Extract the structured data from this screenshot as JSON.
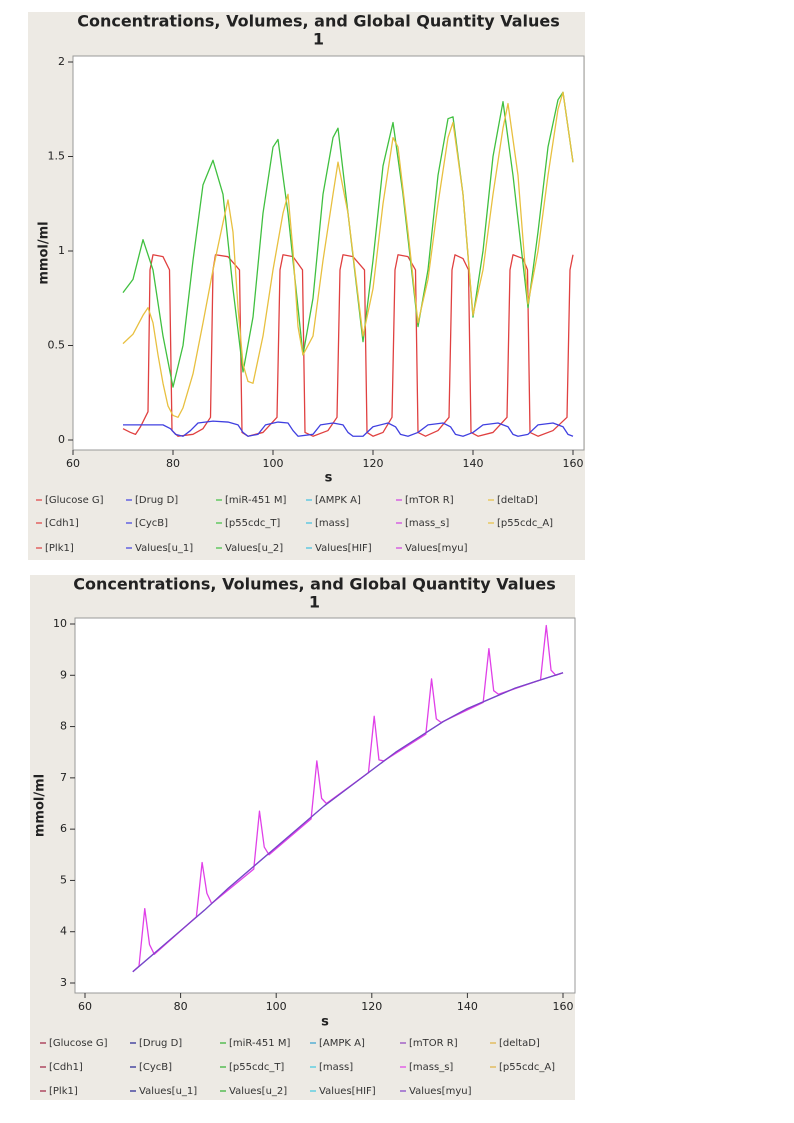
{
  "chart_data": [
    {
      "type": "line",
      "title": "Concentrations, Volumes, and Global Quantity Values",
      "subtitle": "1",
      "x_label": "s",
      "y_label": "mmol/ml",
      "xlim": [
        60,
        160
      ],
      "xticks": [
        60,
        80,
        100,
        120,
        140,
        160
      ],
      "ylim": [
        0,
        2
      ],
      "yticks": [
        0,
        0.5,
        1,
        1.5,
        2
      ],
      "series": [
        {
          "name": "[Glucose G]",
          "color": "#e04040",
          "x": [],
          "values": []
        },
        {
          "name": "[Drug D]",
          "color": "#4040e0",
          "x": [],
          "values": []
        },
        {
          "name": "[miR-451 M]",
          "color": "#40c040",
          "x": [],
          "values": []
        },
        {
          "name": "[AMPK A]",
          "color": "#40c0e0",
          "x": [],
          "values": []
        },
        {
          "name": "[mTOR R]",
          "color": "#d040e0",
          "x": [],
          "values": []
        },
        {
          "name": "[deltaD]",
          "color": "#e8c040",
          "x": [],
          "values": []
        },
        {
          "name": "[Cdh1]",
          "color": "#e04040",
          "x": [
            70,
            71.5,
            72.5,
            73.5,
            75,
            75.4,
            76,
            78,
            79.3,
            79.8,
            81,
            84,
            86,
            87.5,
            88,
            88.5,
            91,
            93.3,
            93.8,
            95,
            98,
            100.8,
            101.4,
            102,
            104,
            105.9,
            106.4,
            108,
            111,
            112.8,
            113.4,
            114,
            116,
            118.3,
            118.8,
            120,
            122,
            123.8,
            124.4,
            125,
            127,
            128.5,
            129,
            130.5,
            133,
            135.2,
            135.8,
            136.4,
            138,
            139.1,
            139.6,
            141,
            144,
            146.8,
            147.4,
            148,
            150,
            150.9,
            151.4,
            153,
            156,
            158.8,
            159.4,
            160
          ],
          "values": [
            0.06,
            0.04,
            0.03,
            0.07,
            0.15,
            0.9,
            0.98,
            0.97,
            0.9,
            0.05,
            0.02,
            0.03,
            0.06,
            0.12,
            0.9,
            0.98,
            0.97,
            0.9,
            0.04,
            0.02,
            0.04,
            0.12,
            0.9,
            0.98,
            0.97,
            0.9,
            0.04,
            0.02,
            0.05,
            0.12,
            0.9,
            0.98,
            0.97,
            0.9,
            0.04,
            0.02,
            0.04,
            0.12,
            0.9,
            0.98,
            0.97,
            0.9,
            0.04,
            0.02,
            0.05,
            0.12,
            0.9,
            0.98,
            0.96,
            0.9,
            0.04,
            0.02,
            0.04,
            0.12,
            0.9,
            0.98,
            0.96,
            0.9,
            0.04,
            0.02,
            0.05,
            0.12,
            0.9,
            0.98
          ]
        },
        {
          "name": "[CycB]",
          "color": "#4040e0",
          "x": [
            70,
            74,
            78,
            79.5,
            80.5,
            82,
            83.5,
            85,
            88,
            91,
            93,
            94,
            95,
            97,
            98.5,
            101,
            103,
            104,
            105,
            108,
            109.5,
            112,
            114,
            115,
            116,
            118,
            120,
            123,
            124.5,
            125.5,
            127,
            129,
            131,
            134,
            135.5,
            136.5,
            138,
            140,
            142,
            145,
            147,
            148,
            149,
            151,
            153,
            156,
            158,
            159,
            160
          ],
          "values": [
            0.08,
            0.08,
            0.08,
            0.06,
            0.03,
            0.02,
            0.05,
            0.09,
            0.1,
            0.095,
            0.08,
            0.04,
            0.02,
            0.03,
            0.08,
            0.095,
            0.09,
            0.05,
            0.02,
            0.03,
            0.08,
            0.09,
            0.08,
            0.04,
            0.02,
            0.02,
            0.07,
            0.09,
            0.07,
            0.03,
            0.02,
            0.04,
            0.08,
            0.09,
            0.07,
            0.03,
            0.02,
            0.04,
            0.08,
            0.09,
            0.07,
            0.03,
            0.02,
            0.03,
            0.08,
            0.09,
            0.07,
            0.03,
            0.02
          ]
        },
        {
          "name": "[p55cdc_T]",
          "color": "#40c040",
          "x": [
            70,
            72,
            74,
            76,
            78,
            80,
            82,
            84,
            86,
            88,
            90,
            92,
            94,
            96,
            98,
            100,
            101,
            103,
            106,
            108,
            110,
            112,
            113,
            115,
            118,
            120,
            122,
            124,
            126,
            129,
            131,
            133,
            135,
            136,
            138,
            140,
            142,
            144,
            146,
            148,
            151,
            153,
            155,
            157,
            158,
            160
          ],
          "values": [
            0.78,
            0.85,
            1.06,
            0.9,
            0.55,
            0.28,
            0.5,
            0.95,
            1.35,
            1.48,
            1.3,
            0.8,
            0.36,
            0.65,
            1.2,
            1.55,
            1.59,
            1.2,
            0.45,
            0.75,
            1.3,
            1.6,
            1.65,
            1.2,
            0.52,
            0.95,
            1.45,
            1.68,
            1.3,
            0.6,
            0.9,
            1.4,
            1.7,
            1.71,
            1.3,
            0.65,
            1.0,
            1.5,
            1.79,
            1.4,
            0.7,
            1.1,
            1.55,
            1.8,
            1.84,
            1.47
          ]
        },
        {
          "name": "[mass]",
          "color": "#40c0e0",
          "x": [],
          "values": []
        },
        {
          "name": "[mass_s]",
          "color": "#d040e0",
          "x": [],
          "values": []
        },
        {
          "name": "[p55cdc_A]",
          "color": "#e8c040",
          "x": [
            70,
            72,
            74,
            75,
            76,
            77,
            78,
            79,
            80,
            81,
            82,
            84,
            86,
            88,
            90,
            91,
            92,
            93,
            94,
            95,
            96,
            98,
            100,
            102,
            103,
            104,
            105,
            106,
            108,
            110,
            112,
            113,
            115,
            118,
            120,
            122,
            124,
            125,
            127,
            129,
            131,
            133,
            135,
            136,
            138,
            140,
            142,
            144,
            146,
            147,
            149,
            151,
            153,
            155,
            157,
            158,
            160
          ],
          "values": [
            0.51,
            0.56,
            0.66,
            0.7,
            0.62,
            0.45,
            0.3,
            0.18,
            0.13,
            0.12,
            0.17,
            0.35,
            0.62,
            0.9,
            1.15,
            1.27,
            1.1,
            0.7,
            0.4,
            0.31,
            0.3,
            0.55,
            0.9,
            1.2,
            1.3,
            1.0,
            0.6,
            0.45,
            0.55,
            0.95,
            1.3,
            1.47,
            1.2,
            0.55,
            0.8,
            1.25,
            1.6,
            1.55,
            1.1,
            0.62,
            0.85,
            1.25,
            1.6,
            1.68,
            1.3,
            0.66,
            0.9,
            1.3,
            1.65,
            1.78,
            1.4,
            0.72,
            1.0,
            1.4,
            1.75,
            1.84,
            1.47
          ]
        },
        {
          "name": "[Plk1]",
          "color": "#e04040",
          "x": [],
          "values": []
        },
        {
          "name": "Values[u_1]",
          "color": "#4040e0",
          "x": [],
          "values": []
        },
        {
          "name": "Values[u_2]",
          "color": "#40c040",
          "x": [],
          "values": []
        },
        {
          "name": "Values[HIF]",
          "color": "#40c0e0",
          "x": [],
          "values": []
        },
        {
          "name": "Values[myu]",
          "color": "#d040e0",
          "x": [],
          "values": []
        }
      ]
    },
    {
      "type": "line",
      "title": "Concentrations, Volumes, and Global Quantity Values",
      "subtitle": "1",
      "x_label": "s",
      "y_label": "mmol/ml",
      "xlim": [
        60,
        160
      ],
      "xticks": [
        60,
        80,
        100,
        120,
        140,
        160
      ],
      "ylim": [
        3,
        10
      ],
      "yticks": [
        3,
        4,
        5,
        6,
        7,
        8,
        9,
        10
      ],
      "series": [
        {
          "name": "[Glucose G]",
          "color": "#a02040",
          "x": [],
          "values": []
        },
        {
          "name": "[Drug D]",
          "color": "#202090",
          "x": [],
          "values": []
        },
        {
          "name": "[miR-451 M]",
          "color": "#30b030",
          "x": [],
          "values": []
        },
        {
          "name": "[AMPK A]",
          "color": "#30a0d0",
          "x": [],
          "values": []
        },
        {
          "name": "[mTOR R]",
          "color": "#9040c0",
          "x": [],
          "values": []
        },
        {
          "name": "[deltaD]",
          "color": "#e0b040",
          "x": [],
          "values": []
        },
        {
          "name": "[Cdh1]",
          "color": "#a02040",
          "x": [],
          "values": []
        },
        {
          "name": "[CycB]",
          "color": "#202090",
          "x": [],
          "values": []
        },
        {
          "name": "[p55cdc_T]",
          "color": "#30b030",
          "x": [],
          "values": []
        },
        {
          "name": "[mass]",
          "color": "#40c8e0",
          "x": [
            70,
            75,
            80,
            85,
            90,
            95,
            100,
            105,
            110,
            115,
            120,
            125,
            130,
            135,
            140,
            145,
            150,
            155,
            160
          ],
          "values": [
            3.22,
            3.62,
            4.02,
            4.42,
            4.85,
            5.25,
            5.65,
            6.05,
            6.45,
            6.8,
            7.15,
            7.5,
            7.8,
            8.1,
            8.35,
            8.55,
            8.75,
            8.9,
            9.05
          ]
        },
        {
          "name": "[mass_s]",
          "color": "#e040e8",
          "x": [
            70,
            71.3,
            72.5,
            73.5,
            74.5,
            83.3,
            84.5,
            85.5,
            86.5,
            95.3,
            96.5,
            97.5,
            98.5,
            107.3,
            108.5,
            109.5,
            110.5,
            119.3,
            120.5,
            121.5,
            122.5,
            131.3,
            132.5,
            133.5,
            134.5,
            143.3,
            144.5,
            145.5,
            146.5,
            155.3,
            156.5,
            157.5,
            158.5,
            160
          ],
          "values": [
            3.22,
            3.33,
            4.45,
            3.75,
            3.56,
            4.29,
            5.35,
            4.75,
            4.55,
            5.22,
            6.35,
            5.65,
            5.5,
            6.2,
            7.33,
            6.6,
            6.5,
            7.1,
            8.2,
            7.35,
            7.33,
            7.85,
            8.93,
            8.15,
            8.08,
            8.47,
            9.52,
            8.7,
            8.63,
            8.91,
            9.97,
            9.1,
            9.0,
            9.05
          ]
        },
        {
          "name": "[p55cdc_A]",
          "color": "#e0b040",
          "x": [],
          "values": []
        },
        {
          "name": "[Plk1]",
          "color": "#a02040",
          "x": [],
          "values": []
        },
        {
          "name": "Values[u_1]",
          "color": "#202090",
          "x": [],
          "values": []
        },
        {
          "name": "Values[u_2]",
          "color": "#30b030",
          "x": [],
          "values": []
        },
        {
          "name": "Values[HIF]",
          "color": "#40c8e0",
          "x": [],
          "values": []
        },
        {
          "name": "Values[myu]",
          "color": "#8040c8",
          "x": [
            70,
            75,
            80,
            85,
            90,
            95,
            100,
            105,
            110,
            115,
            120,
            125,
            130,
            135,
            140,
            145,
            150,
            155,
            160
          ],
          "values": [
            3.22,
            3.62,
            4.02,
            4.42,
            4.85,
            5.25,
            5.65,
            6.05,
            6.45,
            6.8,
            7.15,
            7.5,
            7.8,
            8.1,
            8.35,
            8.55,
            8.75,
            8.9,
            9.05
          ]
        }
      ]
    }
  ]
}
